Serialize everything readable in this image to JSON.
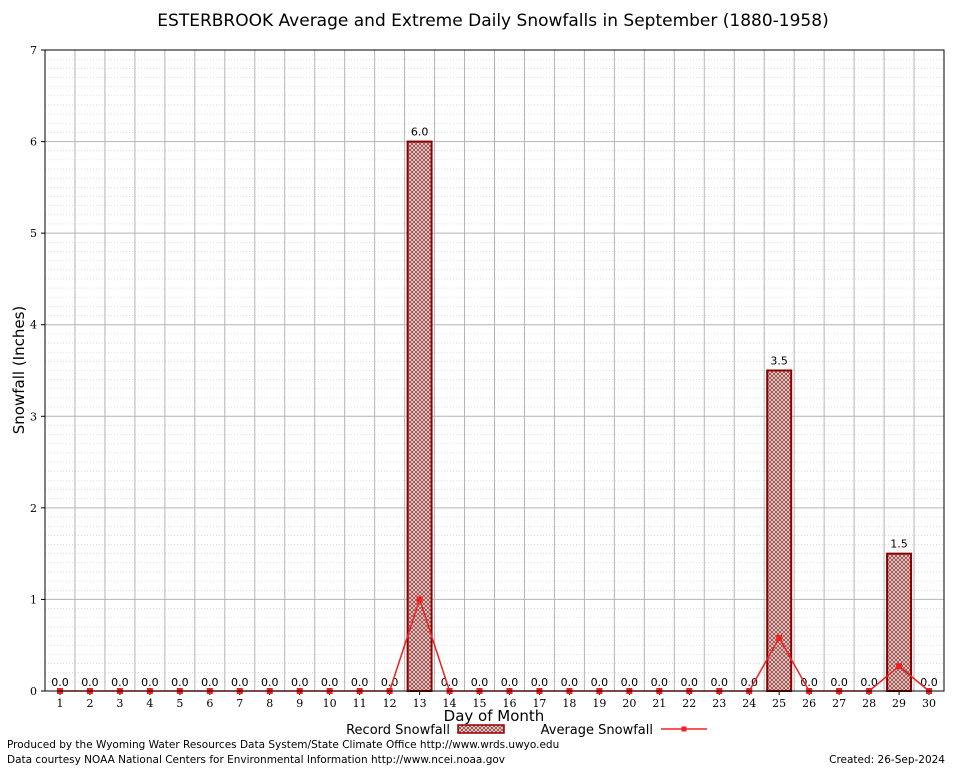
{
  "chart_data": {
    "type": "bar",
    "title": "ESTERBROOK Average and Extreme Daily Snowfalls in September (1880-1958)",
    "xlabel": "Day of Month",
    "ylabel": "Snowfall (Inches)",
    "ylim": [
      0,
      7
    ],
    "yticks": [
      "0",
      "1",
      "2",
      "3",
      "4",
      "5",
      "6",
      "7"
    ],
    "categories": [
      "1",
      "2",
      "3",
      "4",
      "5",
      "6",
      "7",
      "8",
      "9",
      "10",
      "11",
      "12",
      "13",
      "14",
      "15",
      "16",
      "17",
      "18",
      "19",
      "20",
      "21",
      "22",
      "23",
      "24",
      "25",
      "26",
      "27",
      "28",
      "29",
      "30"
    ],
    "series": [
      {
        "name": "Record Snowfall",
        "kind": "bar",
        "values": [
          0,
          0,
          0,
          0,
          0,
          0,
          0,
          0,
          0,
          0,
          0,
          0,
          6.0,
          0,
          0,
          0,
          0,
          0,
          0,
          0,
          0,
          0,
          0,
          0,
          3.5,
          0,
          0,
          0,
          1.5,
          0
        ],
        "labels": [
          "0.0",
          "0.0",
          "0.0",
          "0.0",
          "0.0",
          "0.0",
          "0.0",
          "0.0",
          "0.0",
          "0.0",
          "0.0",
          "0.0",
          "6.0",
          "0.0",
          "0.0",
          "0.0",
          "0.0",
          "0.0",
          "0.0",
          "0.0",
          "0.0",
          "0.0",
          "0.0",
          "0.0",
          "3.5",
          "0.0",
          "0.0",
          "0.0",
          "1.5",
          "0.0"
        ]
      },
      {
        "name": "Average Snowfall",
        "kind": "line",
        "values": [
          0,
          0,
          0,
          0,
          0,
          0,
          0,
          0,
          0,
          0,
          0,
          0,
          1.0,
          0,
          0,
          0,
          0,
          0,
          0,
          0,
          0,
          0,
          0,
          0,
          0.58,
          0,
          0,
          0,
          0.27,
          0
        ]
      }
    ],
    "grid": true,
    "legend_position": "bottom-center",
    "colors": {
      "bar_fill": "#b08a85",
      "bar_edge": "#8b0000",
      "line": "#ee2222"
    }
  },
  "footer": {
    "produced_by": "Produced by the Wyoming Water Resources Data System/State Climate Office http://www.wrds.uwyo.edu",
    "courtesy": "Data courtesy NOAA National Centers for Environmental Information http://www.ncei.noaa.gov",
    "created": "Created:  26-Sep-2024"
  }
}
